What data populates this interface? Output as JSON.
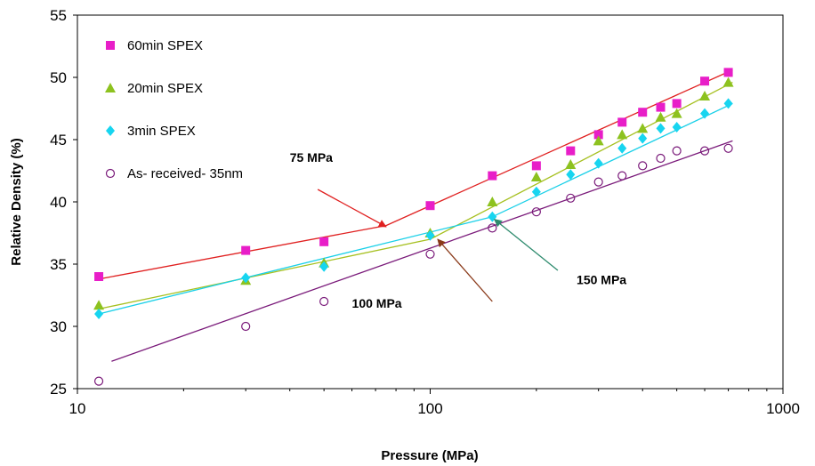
{
  "chart_data": {
    "type": "scatter",
    "title": "",
    "xlabel": "Pressure (MPa)",
    "ylabel": "Relative Density (%)",
    "x_scale": "log",
    "xlim": [
      10,
      1000
    ],
    "ylim": [
      25,
      55
    ],
    "x_ticks": [
      10,
      100,
      1000
    ],
    "y_ticks": [
      25,
      30,
      35,
      40,
      45,
      50,
      55
    ],
    "grid": false,
    "legend_position": "top-left",
    "series": [
      {
        "name": "60min SPEX",
        "marker": "square",
        "color": "#e81ec8",
        "points": [
          [
            11.5,
            34.0
          ],
          [
            30,
            36.1
          ],
          [
            50,
            36.8
          ],
          [
            100,
            39.7
          ],
          [
            150,
            42.1
          ],
          [
            200,
            42.9
          ],
          [
            250,
            44.1
          ],
          [
            300,
            45.4
          ],
          [
            350,
            46.4
          ],
          [
            400,
            47.2
          ],
          [
            450,
            47.6
          ],
          [
            500,
            47.9
          ],
          [
            600,
            49.7
          ],
          [
            700,
            50.4
          ]
        ],
        "fit_line_color": "#e02020",
        "fit_line": [
          [
            11.5,
            33.8
          ],
          [
            75,
            38.1
          ],
          [
            720,
            50.6
          ]
        ]
      },
      {
        "name": "20min SPEX",
        "marker": "triangle",
        "color": "#8dc21f",
        "points": [
          [
            11.5,
            31.7
          ],
          [
            30,
            33.7
          ],
          [
            50,
            35.1
          ],
          [
            100,
            37.5
          ],
          [
            150,
            40.0
          ],
          [
            200,
            42.0
          ],
          [
            250,
            43.0
          ],
          [
            300,
            44.9
          ],
          [
            350,
            45.4
          ],
          [
            400,
            45.9
          ],
          [
            450,
            46.8
          ],
          [
            500,
            47.1
          ],
          [
            600,
            48.5
          ],
          [
            700,
            49.6
          ]
        ],
        "fit_line_color": "#a6c020",
        "fit_line": [
          [
            11.5,
            31.4
          ],
          [
            100,
            37.0
          ],
          [
            720,
            49.6
          ]
        ]
      },
      {
        "name": "3min SPEX",
        "marker": "diamond",
        "color": "#17d5f0",
        "points": [
          [
            11.5,
            31.0
          ],
          [
            30,
            33.9
          ],
          [
            50,
            34.8
          ],
          [
            100,
            37.3
          ],
          [
            150,
            38.8
          ],
          [
            200,
            40.8
          ],
          [
            250,
            42.2
          ],
          [
            300,
            43.1
          ],
          [
            350,
            44.3
          ],
          [
            400,
            45.1
          ],
          [
            450,
            45.9
          ],
          [
            500,
            46.0
          ],
          [
            600,
            47.1
          ],
          [
            700,
            47.9
          ]
        ],
        "fit_line_color": "#1ad0e8",
        "fit_line": [
          [
            11.5,
            31.0
          ],
          [
            150,
            38.8
          ],
          [
            720,
            47.9
          ]
        ]
      },
      {
        "name": "As- received- 35nm",
        "marker": "circle-open",
        "color": "#7a1a7a",
        "points": [
          [
            11.5,
            25.6
          ],
          [
            30,
            30.0
          ],
          [
            50,
            32.0
          ],
          [
            100,
            35.8
          ],
          [
            150,
            37.9
          ],
          [
            200,
            39.2
          ],
          [
            250,
            40.3
          ],
          [
            300,
            41.6
          ],
          [
            350,
            42.1
          ],
          [
            400,
            42.9
          ],
          [
            450,
            43.5
          ],
          [
            500,
            44.1
          ],
          [
            600,
            44.1
          ],
          [
            700,
            44.3
          ]
        ],
        "fit_line_color": "#7a1a7a",
        "fit_line": [
          [
            12.5,
            27.2
          ],
          [
            720,
            44.9
          ]
        ]
      }
    ],
    "annotations": [
      {
        "text": "75 MPa",
        "arrow_color": "#e02020",
        "text_at": [
          40,
          43.2
        ],
        "arrow_from": [
          48,
          41.0
        ],
        "arrow_to": [
          75,
          38.0
        ]
      },
      {
        "text": "100 MPa",
        "arrow_color": "#8a3a1a",
        "text_at": [
          60,
          31.5
        ],
        "arrow_from": [
          150,
          32.0
        ],
        "arrow_to": [
          105,
          37.0
        ]
      },
      {
        "text": "150 MPa",
        "arrow_color": "#2e8b6e",
        "text_at": [
          260,
          33.4
        ],
        "arrow_from": [
          230,
          34.5
        ],
        "arrow_to": [
          152,
          38.6
        ]
      }
    ]
  }
}
